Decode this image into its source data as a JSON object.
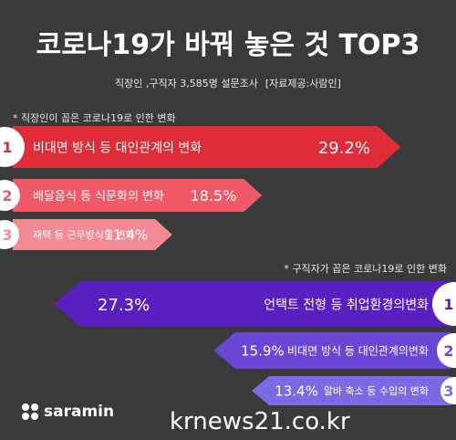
{
  "header": {
    "title": "코로나19가 바꿔 놓은 것 TOP3",
    "subtitle": "직장인 ,구직자 3,585명 설문조사",
    "source": "[자료제공:사람인]"
  },
  "chart_data": [
    {
      "type": "bar",
      "title": "* 직장인이 꼽은 코로나19로 인한 변화",
      "categories": [
        "비대면 방식 등 대인관계의 변화",
        "배달음식 등 식문화의 변화",
        "재택 등 근무방식의 변화"
      ],
      "ranks": [
        "1",
        "2",
        "3"
      ],
      "values": [
        29.2,
        18.5,
        11.4
      ],
      "value_labels": [
        "29.2%",
        "18.5%",
        "11.4%"
      ],
      "colors": [
        "#e02b38",
        "#ef5a66",
        "#f38a94"
      ]
    },
    {
      "type": "bar",
      "title": "* 구직자가 꼽은 코로나19로 인한 변화",
      "categories": [
        "언택트 전형 등 취업환경의변화",
        "비대면 방식 등 대인관계의변화",
        "알바 축소 등 수입의 변화"
      ],
      "ranks": [
        "1",
        "2",
        "3"
      ],
      "values": [
        27.3,
        15.9,
        13.4
      ],
      "value_labels": [
        "27.3%",
        "15.9%",
        "13.4%"
      ],
      "colors": [
        "#5a1fc0",
        "#6b45d6",
        "#7b6ae3"
      ]
    }
  ],
  "footer": {
    "logo_text": "saramin",
    "site": "krnews21.co.kr"
  }
}
